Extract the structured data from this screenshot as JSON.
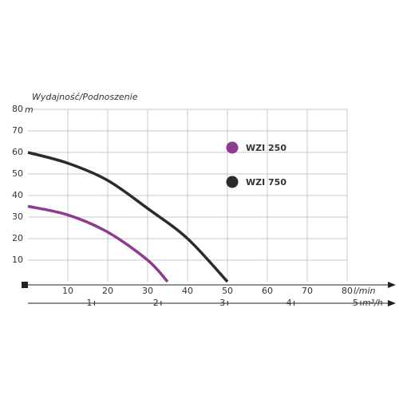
{
  "chart_data": {
    "type": "line",
    "title": "Wydajność/Podnoszenie",
    "xlabel": "l/min",
    "ylabel": "m",
    "x2label": "m³/h",
    "xlim": [
      0,
      80
    ],
    "xticks": [
      10,
      20,
      30,
      40,
      50,
      60,
      70,
      80
    ],
    "ylim": [
      0,
      80
    ],
    "yticks": [
      10,
      20,
      30,
      40,
      50,
      60,
      70,
      80
    ],
    "x2lim": [
      0,
      5
    ],
    "x2ticks": [
      1,
      2,
      3,
      4,
      5
    ],
    "grid": true,
    "series": [
      {
        "name": "WZI 250",
        "color": "#8e3a8e",
        "x": [
          0,
          10,
          20,
          30,
          35
        ],
        "values": [
          35,
          31,
          23,
          10,
          0
        ]
      },
      {
        "name": "WZI 750",
        "color": "#2b2b2b",
        "x": [
          0,
          10,
          20,
          30,
          40,
          50
        ],
        "values": [
          60,
          55,
          47,
          34,
          20,
          0
        ]
      }
    ]
  }
}
